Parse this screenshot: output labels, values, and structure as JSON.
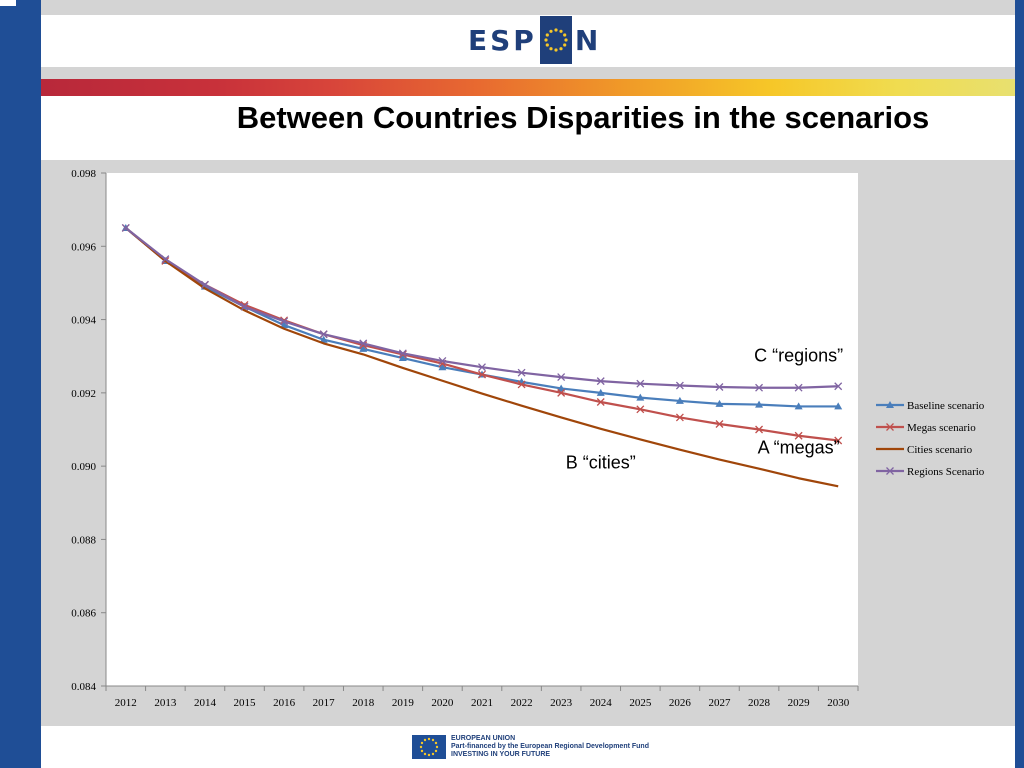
{
  "logo": {
    "left_text": "ESP",
    "right_text": "N"
  },
  "slide_title": "Between Countries Disparities in the scenarios",
  "footer": {
    "line1": "EUROPEAN UNION",
    "line2": "Part-financed by the European Regional Development Fund",
    "line3": "INVESTING IN YOUR FUTURE"
  },
  "colors": {
    "brand_blue": "#1f4e96",
    "logo_blue": "#1f3f7a",
    "panel_grey": "#d4d4d4"
  },
  "chart_data": {
    "type": "line",
    "title": "",
    "xlabel": "",
    "ylabel": "",
    "categories": [
      "2012",
      "2013",
      "2014",
      "2015",
      "2016",
      "2017",
      "2018",
      "2019",
      "2020",
      "2021",
      "2022",
      "2023",
      "2024",
      "2025",
      "2026",
      "2027",
      "2028",
      "2029",
      "2030"
    ],
    "ylim": [
      0.084,
      0.098
    ],
    "yticks": [
      0.084,
      0.086,
      0.088,
      0.09,
      0.092,
      0.094,
      0.096,
      0.098
    ],
    "ytick_labels": [
      "0.084",
      "0.086",
      "0.088",
      "0.090",
      "0.092",
      "0.094",
      "0.096",
      "0.098"
    ],
    "grid": false,
    "legend_position": "right",
    "series": [
      {
        "name": "Baseline scenario",
        "color": "#4a7ebb",
        "marker": "triangle",
        "values": [
          0.0965,
          0.0956,
          0.0949,
          0.09435,
          0.09385,
          0.09345,
          0.0932,
          0.09295,
          0.0927,
          0.0925,
          0.0923,
          0.09212,
          0.092,
          0.09187,
          0.09178,
          0.0917,
          0.09168,
          0.09163,
          0.09163
        ]
      },
      {
        "name": "Megas scenario",
        "color": "#c0504d",
        "marker": "x",
        "values": [
          0.0965,
          0.0956,
          0.09495,
          0.0944,
          0.09398,
          0.0936,
          0.0933,
          0.09305,
          0.0928,
          0.0925,
          0.09223,
          0.092,
          0.09175,
          0.09155,
          0.09133,
          0.09115,
          0.091,
          0.09083,
          0.0907
        ]
      },
      {
        "name": "Cities scenario",
        "color": "#a0460a",
        "marker": "none",
        "values": [
          0.0965,
          0.0956,
          0.09485,
          0.09425,
          0.09375,
          0.09335,
          0.09305,
          0.09268,
          0.09233,
          0.09198,
          0.09165,
          0.09133,
          0.09102,
          0.09073,
          0.09045,
          0.09018,
          0.08993,
          0.08967,
          0.08945
        ]
      },
      {
        "name": "Regions Scenario",
        "color": "#8064a2",
        "marker": "x",
        "values": [
          0.0965,
          0.09565,
          0.09495,
          0.09435,
          0.09395,
          0.0936,
          0.09335,
          0.09308,
          0.09287,
          0.0927,
          0.09255,
          0.09243,
          0.09232,
          0.09225,
          0.0922,
          0.09216,
          0.09214,
          0.09214,
          0.09218
        ]
      }
    ],
    "annotations": [
      {
        "text": "C “regions”",
        "x": "2029",
        "y": 0.09285
      },
      {
        "text": "A “megas”",
        "x": "2029",
        "y": 0.09035
      },
      {
        "text": "B “cities”",
        "x": "2024",
        "y": 0.08993
      }
    ]
  }
}
